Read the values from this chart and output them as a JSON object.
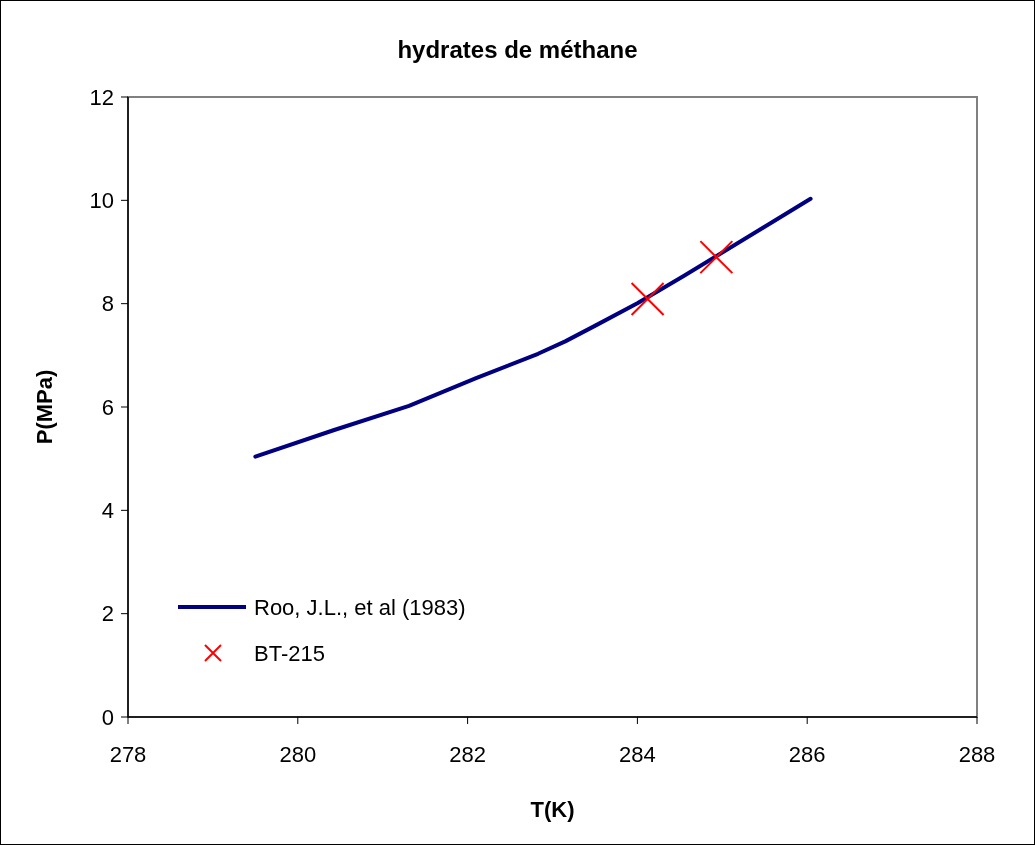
{
  "chart_data": {
    "type": "line",
    "title": "hydrates de méthane",
    "xlabel": "T(K)",
    "ylabel": "P(MPa)",
    "xlim": [
      278,
      288
    ],
    "xticks": [
      278,
      280,
      282,
      284,
      286,
      288
    ],
    "ylim": [
      0,
      12
    ],
    "yticks": [
      0,
      2,
      4,
      6,
      8,
      10,
      12
    ],
    "grid": false,
    "legend": "bottom left",
    "series": [
      {
        "name": "Roo, J.L., et al (1983)",
        "color": "#000080",
        "marker": "none",
        "line_style": "solid",
        "x": [
          279.5,
          280.42,
          281.31,
          282.1,
          282.83,
          283.15,
          283.51,
          284.0,
          284.55,
          286.04
        ],
        "values": [
          5.04,
          5.55,
          6.02,
          6.56,
          7.03,
          7.27,
          7.58,
          8.01,
          8.54,
          10.03
        ]
      },
      {
        "name": "BT-215",
        "type": "scatter",
        "color": "#ff0000",
        "marker": "cross",
        "x": [
          284.12,
          284.93
        ],
        "values": [
          8.09,
          8.9
        ]
      }
    ]
  }
}
